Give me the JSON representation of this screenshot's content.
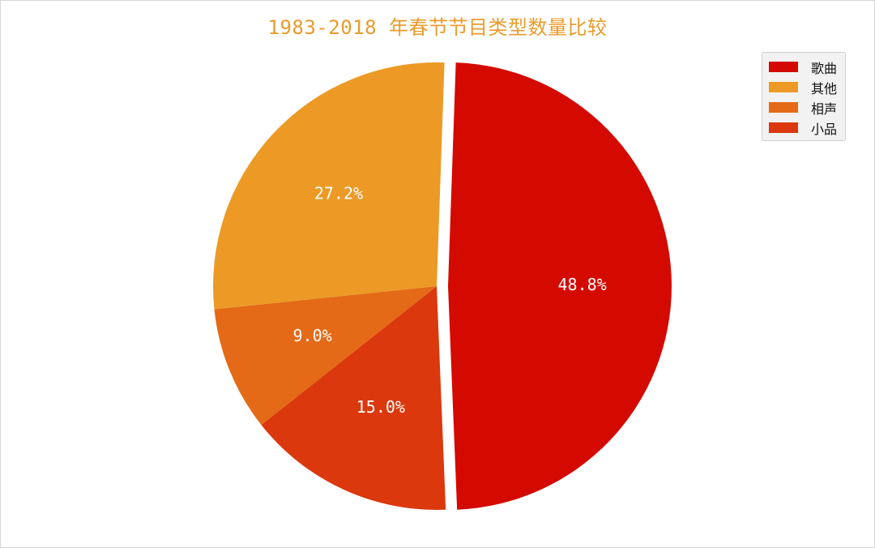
{
  "chart_data": {
    "type": "pie",
    "title": "1983-2018 年春节节目类型数量比较",
    "slices": [
      {
        "name": "歌曲",
        "value": 48.8,
        "label": "48.8%",
        "color": "#d40a00",
        "explode": true
      },
      {
        "name": "小品",
        "value": 15.0,
        "label": "15.0%",
        "color": "#db380e",
        "explode": false
      },
      {
        "name": "相声",
        "value": 9.0,
        "label": "9.0%",
        "color": "#e46a17",
        "explode": false
      },
      {
        "name": "其他",
        "value": 27.2,
        "label": "27.2%",
        "color": "#ec9a25",
        "explode": false
      }
    ],
    "start_angle_deg": 88,
    "direction": "clockwise",
    "legend": {
      "placement": "top-right",
      "entries": [
        "歌曲",
        "其他",
        "相声",
        "小品"
      ]
    }
  }
}
